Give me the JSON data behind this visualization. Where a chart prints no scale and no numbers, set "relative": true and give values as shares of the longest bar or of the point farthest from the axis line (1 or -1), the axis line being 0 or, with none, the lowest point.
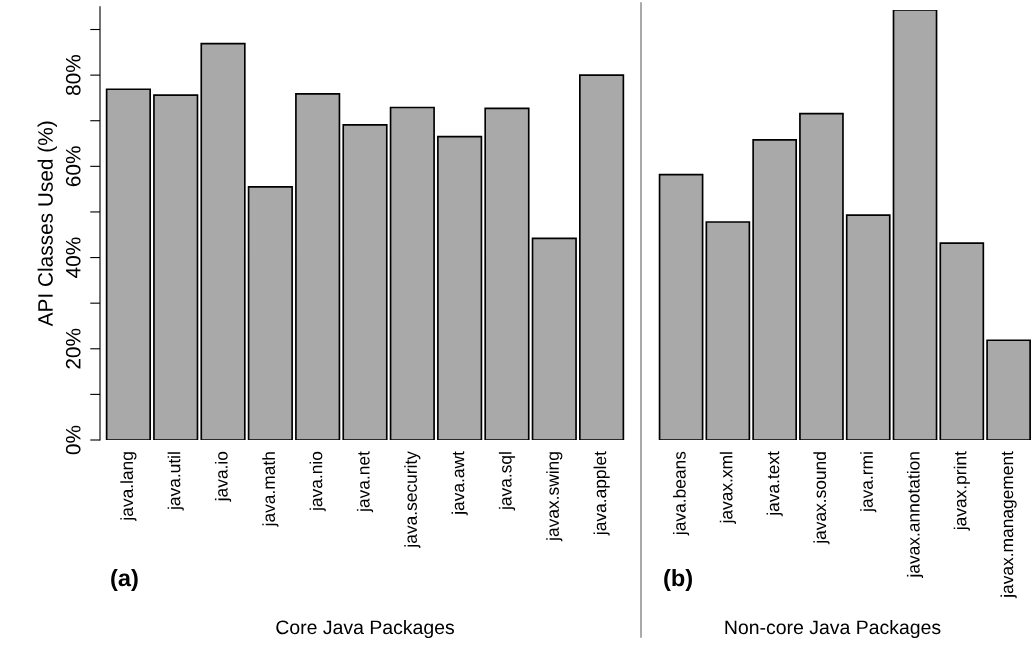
{
  "chart_data": [
    {
      "type": "bar",
      "categories": [
        "java.lang",
        "java.util",
        "java.io",
        "java.math",
        "java.nio",
        "java.net",
        "java.security",
        "java.awt",
        "java.sql",
        "javax.swing",
        "java.applet"
      ],
      "values": [
        76.9,
        75.6,
        86.9,
        55.5,
        75.9,
        69.1,
        72.9,
        66.5,
        72.7,
        44.2,
        80.0
      ],
      "color": "#a9a9a9",
      "xlabel": "Core Java Packages",
      "ylabel": "API Classes Used (%)",
      "ylim": [
        0,
        95
      ],
      "yticks": [
        {
          "value": 0,
          "label": "0%"
        },
        {
          "value": 10,
          "label": null
        },
        {
          "value": 20,
          "label": "20%"
        },
        {
          "value": 30,
          "label": null
        },
        {
          "value": 40,
          "label": "40%"
        },
        {
          "value": 50,
          "label": null
        },
        {
          "value": 60,
          "label": "60%"
        },
        {
          "value": 70,
          "label": null
        },
        {
          "value": 80,
          "label": "80%"
        },
        {
          "value": 90,
          "label": null
        }
      ],
      "annotations": [
        "(a)"
      ]
    },
    {
      "type": "bar",
      "categories": [
        "java.beans",
        "javax.xml",
        "java.text",
        "javax.sound",
        "java.rmi",
        "javax.annotation",
        "javax.print",
        "javax.management"
      ],
      "values": [
        0.617,
        0.507,
        0.698,
        0.759,
        0.523,
        1,
        0.458,
        0.232
      ],
      "relative": true,
      "color": "#a9a9a9",
      "xlabel": "Non-core Java Packages",
      "tick_labels": "x",
      "annotations": [
        "(b)"
      ]
    }
  ]
}
